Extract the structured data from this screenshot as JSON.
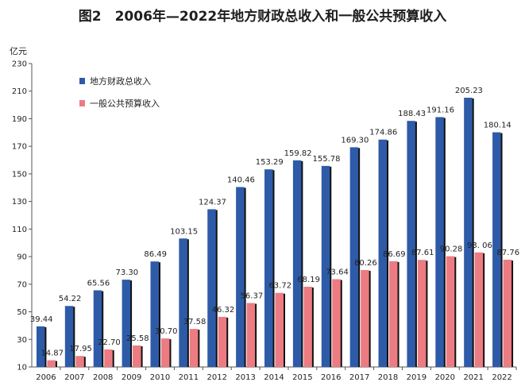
{
  "chart_data": {
    "type": "bar",
    "title": "图2　2006年—2022年地方财政总收入和一般公共预算收入",
    "ylabel": "亿元",
    "xlabel": "",
    "ylim": [
      10,
      230
    ],
    "yticks": [
      10,
      30,
      50,
      70,
      90,
      110,
      130,
      150,
      170,
      190,
      210,
      230
    ],
    "legend_position": "top-left",
    "categories": [
      "2006",
      "2007",
      "2008",
      "2009",
      "2010",
      "2011",
      "2012",
      "2013",
      "2014",
      "2015",
      "2016",
      "2017",
      "2018",
      "2019",
      "2020",
      "2021",
      "2022"
    ],
    "series": [
      {
        "name": "地方财政总收入",
        "color": "#2e5ba8",
        "values": [
          39.44,
          54.22,
          65.56,
          73.3,
          86.49,
          103.15,
          124.37,
          140.46,
          153.29,
          159.82,
          155.78,
          169.3,
          174.86,
          188.43,
          191.16,
          205.23,
          180.14
        ],
        "labels": [
          "39.44",
          "54.22",
          "65.56",
          "73.30",
          "86.49",
          "103.15",
          "124.37",
          "140.46",
          "153.29",
          "159.82",
          "155.78",
          "169.30",
          "174.86",
          "188.43",
          "191.16",
          "205.23",
          "180.14"
        ]
      },
      {
        "name": "一般公共预算收入",
        "color": "#ec7b82",
        "values": [
          14.87,
          17.95,
          22.7,
          25.58,
          30.7,
          37.58,
          46.32,
          56.37,
          63.72,
          68.19,
          73.64,
          80.26,
          86.69,
          87.61,
          90.28,
          93.06,
          87.76
        ],
        "labels": [
          "14.87",
          "17.95",
          "22.70",
          "25.58",
          "30.70",
          "37.58",
          "46.32",
          "56.37",
          "63.72",
          "68.19",
          "73.64",
          "80.26",
          "86.69",
          "87.61",
          "90.28",
          "93. 06",
          "87.76"
        ]
      }
    ]
  }
}
